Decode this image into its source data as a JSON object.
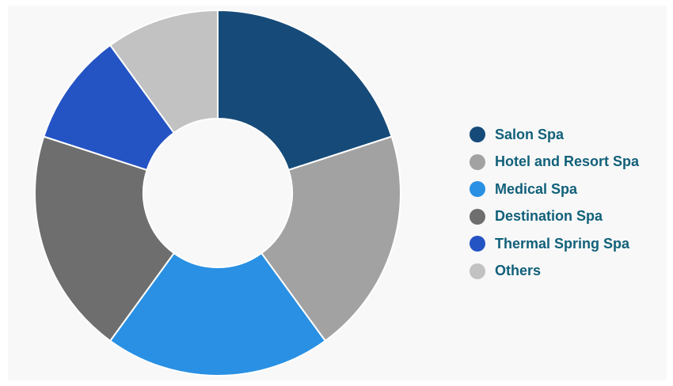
{
  "chart_data": {
    "type": "pie",
    "variant": "donut",
    "categories": [
      "Salon Spa",
      "Hotel and Resort Spa",
      "Medical Spa",
      "Destination Spa",
      "Thermal Spring Spa",
      "Others"
    ],
    "values": [
      20,
      20,
      20,
      20,
      10,
      10
    ],
    "value_unit": "percent (estimated)",
    "start_angle_deg": 0,
    "direction": "clockwise",
    "colors": [
      "#164b79",
      "#a2a2a2",
      "#2990e3",
      "#6e6e6e",
      "#2453c4",
      "#c2c2c2"
    ],
    "legend": {
      "position": "right",
      "text_color": "#11607a",
      "items": [
        {
          "label": "Salon Spa",
          "color": "#164b79"
        },
        {
          "label": "Hotel and Resort Spa",
          "color": "#a2a2a2"
        },
        {
          "label": "Medical Spa",
          "color": "#2990e3"
        },
        {
          "label": "Destination Spa",
          "color": "#6e6e6e"
        },
        {
          "label": "Thermal Spring Spa",
          "color": "#2453c4"
        },
        {
          "label": "Others",
          "color": "#c2c2c2"
        }
      ]
    }
  }
}
